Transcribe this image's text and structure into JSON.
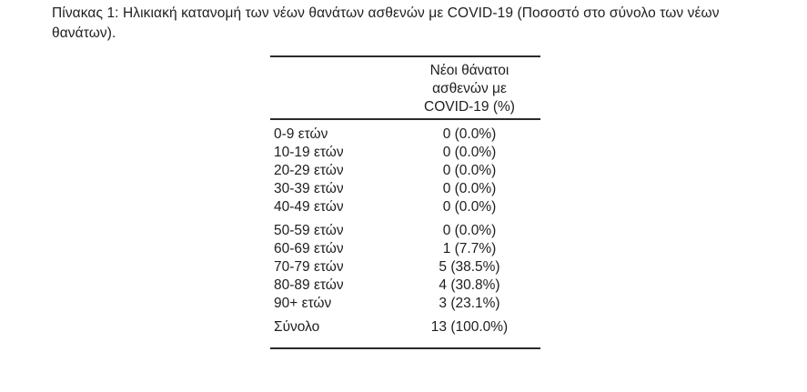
{
  "page": {
    "background": "#ffffff",
    "text_color": "#1e1e1e",
    "rule_color": "#2b2b2b"
  },
  "caption": "Πίνακας 1: Ηλικιακή κατανομή των νέων θανάτων ασθενών με COVID-19 (Ποσοστό στο σύνολο των νέων θανάτων).",
  "table": {
    "header": {
      "lines": [
        "Νέοι θάνατοι",
        "ασθενών με",
        "COVID-19 (%)"
      ]
    },
    "row_groups": [
      {
        "rows": [
          {
            "label": "0-9 ετών",
            "value": "0 (0.0%)"
          },
          {
            "label": "10-19 ετών",
            "value": "0 (0.0%)"
          },
          {
            "label": "20-29 ετών",
            "value": "0 (0.0%)"
          },
          {
            "label": "30-39 ετών",
            "value": "0 (0.0%)"
          },
          {
            "label": "40-49 ετών",
            "value": "0 (0.0%)"
          }
        ]
      },
      {
        "rows": [
          {
            "label": "50-59 ετών",
            "value": "0 (0.0%)"
          },
          {
            "label": "60-69 ετών",
            "value": "1 (7.7%)"
          },
          {
            "label": "70-79 ετών",
            "value": "5 (38.5%)"
          },
          {
            "label": "80-89 ετών",
            "value": "4 (30.8%)"
          },
          {
            "label": "90+ ετών",
            "value": "3 (23.1%)"
          }
        ]
      }
    ],
    "total_row": {
      "label": "Σύνολο",
      "value": "13 (100.0%)"
    }
  },
  "chart_data": {
    "type": "table",
    "title": "Πίνακας 1: Ηλικιακή κατανομή των νέων θανάτων ασθενών με COVID-19 (Ποσοστό στο σύνολο των νέων θανάτων).",
    "columns": [
      "",
      "Νέοι θάνατοι ασθενών με COVID-19 (%)"
    ],
    "categories": [
      "0-9 ετών",
      "10-19 ετών",
      "20-29 ετών",
      "30-39 ετών",
      "40-49 ετών",
      "50-59 ετών",
      "60-69 ετών",
      "70-79 ετών",
      "80-89 ετών",
      "90+ ετών",
      "Σύνολο"
    ],
    "counts": [
      0,
      0,
      0,
      0,
      0,
      0,
      1,
      5,
      4,
      3,
      13
    ],
    "percentages": [
      0.0,
      0.0,
      0.0,
      0.0,
      0.0,
      0.0,
      7.7,
      38.5,
      30.8,
      23.1,
      100.0
    ]
  }
}
